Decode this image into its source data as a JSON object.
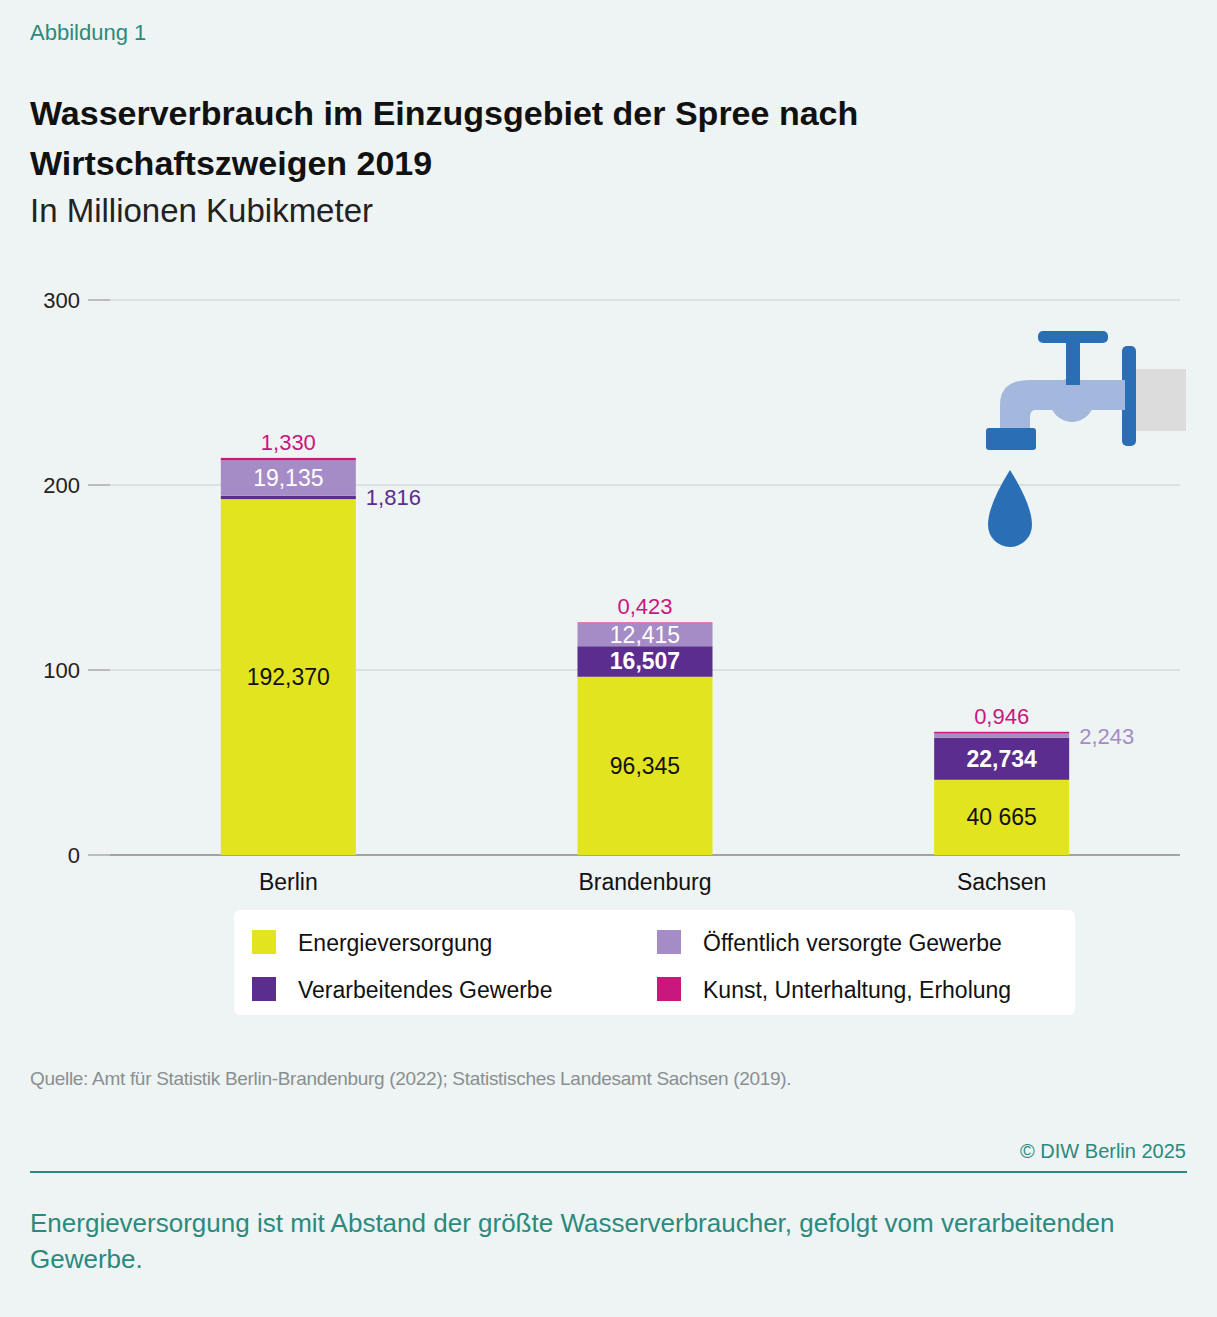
{
  "chart_data": {
    "type": "bar",
    "stacked": true,
    "data_labels": true,
    "grid": true,
    "legend": "bottom",
    "figure_label": "Abbildung 1",
    "title": "Wasserverbrauch im Einzugsgebiet der Spree nach Wirtschaftszweigen 2019",
    "subtitle": "In Millionen Kubikmeter",
    "source": "Quelle: Amt für Statistik Berlin-Brandenburg (2022); Statistisches Landesamt Sachsen (2019).",
    "copyright": "© DIW Berlin 2025",
    "caption": "Energieversorgung ist mit Abstand der größte Wasserverbraucher, gefolgt vom verarbeitenden Gewerbe.",
    "categories": [
      "Berlin",
      "Brandenburg",
      "Sachsen"
    ],
    "ylim": [
      0,
      300
    ],
    "yticks": [
      0,
      100,
      200,
      300
    ],
    "series": [
      {
        "name": "Energieversorgung",
        "color": "#e3e420",
        "values": [
          192.37,
          96.345,
          40.665
        ],
        "value_labels": [
          "192,370",
          "96,345",
          "40 665"
        ]
      },
      {
        "name": "Verarbeitendes Gewerbe",
        "color": "#5a2d8e",
        "values": [
          1.816,
          16.507,
          22.734
        ],
        "value_labels": [
          "1,816",
          "16,507",
          "22,734"
        ]
      },
      {
        "name": "Öffentlich versorgte Gewerbe",
        "color": "#a68cc6",
        "values": [
          19.135,
          12.415,
          2.243
        ],
        "value_labels": [
          "19,135",
          "12,415",
          "2,243"
        ]
      },
      {
        "name": "Kunst, Unterhaltung, Erholung",
        "color": "#c8187e",
        "values": [
          1.33,
          0.423,
          0.946
        ],
        "value_labels": [
          "1,330",
          "0,423",
          "0,946"
        ]
      }
    ]
  }
}
